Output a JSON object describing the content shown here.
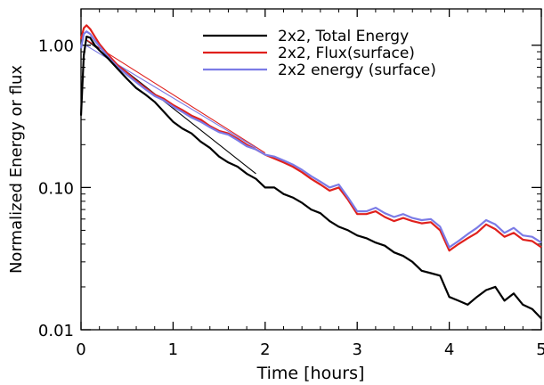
{
  "chart_data": {
    "type": "line",
    "title": "",
    "xlabel": "Time [hours]",
    "ylabel": "Normalized Energy or flux",
    "xlim": [
      0,
      5
    ],
    "ylim": [
      0.01,
      1.8
    ],
    "yscale": "log",
    "grid": false,
    "legend_position": "top-right",
    "x_ticks": [
      {
        "value": 0,
        "label": "0"
      },
      {
        "value": 1,
        "label": "1"
      },
      {
        "value": 2,
        "label": "2"
      },
      {
        "value": 3,
        "label": "3"
      },
      {
        "value": 4,
        "label": "4"
      },
      {
        "value": 5,
        "label": "5"
      }
    ],
    "y_ticks": [
      {
        "value": 1.0,
        "label": "1.00"
      },
      {
        "value": 0.1,
        "label": "0.10"
      },
      {
        "value": 0.01,
        "label": "0.01"
      }
    ],
    "series": [
      {
        "name": "2x2, Total Energy",
        "color": "#000000",
        "x": [
          0.0,
          0.03,
          0.06,
          0.1,
          0.15,
          0.2,
          0.3,
          0.4,
          0.5,
          0.6,
          0.7,
          0.8,
          0.9,
          1.0,
          1.1,
          1.2,
          1.3,
          1.4,
          1.5,
          1.6,
          1.7,
          1.8,
          1.9,
          2.0,
          2.1,
          2.2,
          2.3,
          2.4,
          2.5,
          2.6,
          2.7,
          2.8,
          2.9,
          3.0,
          3.1,
          3.2,
          3.3,
          3.4,
          3.5,
          3.6,
          3.7,
          3.8,
          3.9,
          4.0,
          4.1,
          4.2,
          4.3,
          4.4,
          4.5,
          4.6,
          4.7,
          4.8,
          4.9,
          5.0
        ],
        "y": [
          0.32,
          0.85,
          1.15,
          1.13,
          1.0,
          0.92,
          0.8,
          0.68,
          0.58,
          0.5,
          0.45,
          0.4,
          0.34,
          0.29,
          0.26,
          0.24,
          0.21,
          0.19,
          0.165,
          0.15,
          0.14,
          0.125,
          0.115,
          0.1,
          0.1,
          0.09,
          0.085,
          0.078,
          0.07,
          0.066,
          0.058,
          0.053,
          0.05,
          0.046,
          0.044,
          0.041,
          0.039,
          0.035,
          0.033,
          0.03,
          0.026,
          0.025,
          0.024,
          0.017,
          0.016,
          0.015,
          0.017,
          0.019,
          0.02,
          0.016,
          0.018,
          0.015,
          0.014,
          0.012
        ]
      },
      {
        "name": "2x2, Flux(surface)",
        "color": "#e0201c",
        "x": [
          0.0,
          0.03,
          0.06,
          0.1,
          0.15,
          0.2,
          0.3,
          0.4,
          0.5,
          0.6,
          0.7,
          0.8,
          0.9,
          1.0,
          1.1,
          1.2,
          1.3,
          1.4,
          1.5,
          1.6,
          1.7,
          1.8,
          1.9,
          2.0,
          2.1,
          2.2,
          2.3,
          2.4,
          2.5,
          2.6,
          2.7,
          2.8,
          2.9,
          3.0,
          3.1,
          3.2,
          3.3,
          3.4,
          3.5,
          3.6,
          3.7,
          3.8,
          3.9,
          4.0,
          4.1,
          4.2,
          4.3,
          4.4,
          4.5,
          4.6,
          4.7,
          4.8,
          4.9,
          5.0
        ],
        "y": [
          1.1,
          1.32,
          1.38,
          1.3,
          1.15,
          1.02,
          0.85,
          0.72,
          0.64,
          0.56,
          0.5,
          0.45,
          0.42,
          0.38,
          0.35,
          0.32,
          0.3,
          0.27,
          0.25,
          0.24,
          0.22,
          0.2,
          0.185,
          0.17,
          0.16,
          0.15,
          0.14,
          0.128,
          0.115,
          0.105,
          0.095,
          0.1,
          0.082,
          0.065,
          0.065,
          0.068,
          0.062,
          0.058,
          0.061,
          0.058,
          0.056,
          0.057,
          0.05,
          0.036,
          0.04,
          0.044,
          0.048,
          0.055,
          0.051,
          0.045,
          0.048,
          0.043,
          0.042,
          0.038
        ]
      },
      {
        "name": "2x2 energy (surface)",
        "color": "#7b7be6",
        "x": [
          0.0,
          0.03,
          0.06,
          0.1,
          0.15,
          0.2,
          0.3,
          0.4,
          0.5,
          0.6,
          0.7,
          0.8,
          0.9,
          1.0,
          1.1,
          1.2,
          1.3,
          1.4,
          1.5,
          1.6,
          1.7,
          1.8,
          1.9,
          2.0,
          2.1,
          2.2,
          2.3,
          2.4,
          2.5,
          2.6,
          2.7,
          2.8,
          2.9,
          3.0,
          3.1,
          3.2,
          3.3,
          3.4,
          3.5,
          3.6,
          3.7,
          3.8,
          3.9,
          4.0,
          4.1,
          4.2,
          4.3,
          4.4,
          4.5,
          4.6,
          4.7,
          4.8,
          4.9,
          5.0
        ],
        "y": [
          0.95,
          1.2,
          1.25,
          1.2,
          1.08,
          0.98,
          0.82,
          0.7,
          0.62,
          0.55,
          0.49,
          0.44,
          0.41,
          0.37,
          0.34,
          0.31,
          0.29,
          0.265,
          0.245,
          0.235,
          0.215,
          0.195,
          0.185,
          0.17,
          0.165,
          0.155,
          0.145,
          0.133,
          0.12,
          0.11,
          0.1,
          0.105,
          0.085,
          0.068,
          0.068,
          0.072,
          0.066,
          0.062,
          0.065,
          0.061,
          0.059,
          0.06,
          0.053,
          0.038,
          0.042,
          0.047,
          0.052,
          0.059,
          0.055,
          0.048,
          0.052,
          0.046,
          0.045,
          0.041
        ]
      }
    ],
    "fit_lines": [
      {
        "color": "#000000",
        "x": [
          0.05,
          1.9
        ],
        "y": [
          1.1,
          0.125
        ]
      },
      {
        "color": "#e0201c",
        "x": [
          0.05,
          2.0
        ],
        "y": [
          1.1,
          0.175
        ]
      },
      {
        "color": "#7b7be6",
        "x": [
          0.05,
          1.9
        ],
        "y": [
          1.0,
          0.19
        ]
      }
    ]
  }
}
